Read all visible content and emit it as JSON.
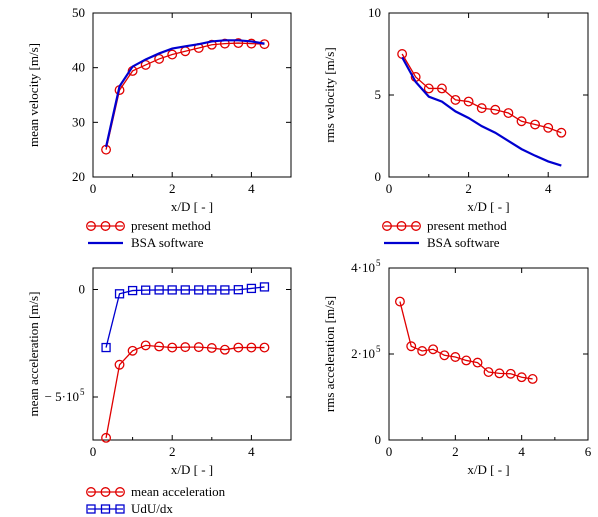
{
  "chart_data": [
    {
      "type": "line",
      "xlabel": "x/D [ - ]",
      "ylabel": "mean velocity [m/s]",
      "xlim": [
        0,
        5
      ],
      "ylim": [
        20,
        50
      ],
      "xticks": [
        0,
        2,
        4
      ],
      "xtick_labels": [
        "0",
        "2",
        "4"
      ],
      "yticks": [
        20,
        30,
        40,
        50
      ],
      "ytick_labels": [
        "20",
        "30",
        "40",
        "50"
      ],
      "legend_position": "below",
      "series": [
        {
          "name": "present method",
          "style": "line-circle",
          "color": "#e00000",
          "x": [
            0.33,
            0.67,
            1.0,
            1.33,
            1.67,
            2.0,
            2.33,
            2.67,
            3.0,
            3.33,
            3.67,
            4.0,
            4.33
          ],
          "y": [
            25.0,
            35.9,
            39.4,
            40.5,
            41.6,
            42.4,
            43.0,
            43.6,
            44.2,
            44.4,
            44.5,
            44.4,
            44.3
          ]
        },
        {
          "name": "BSA software",
          "style": "line",
          "color": "#0000d0",
          "x": [
            0.33,
            0.67,
            1.0,
            1.33,
            1.67,
            2.0,
            2.33,
            2.67,
            3.0,
            3.33,
            3.67,
            4.0,
            4.33
          ],
          "y": [
            25.5,
            36.6,
            40.2,
            41.5,
            42.6,
            43.5,
            43.9,
            44.3,
            44.8,
            45.0,
            45.0,
            44.8,
            44.4
          ]
        }
      ]
    },
    {
      "type": "line",
      "xlabel": "x/D [ - ]",
      "ylabel": "rms velocity [m/s]",
      "xlim": [
        0,
        5
      ],
      "ylim": [
        0,
        10
      ],
      "xticks": [
        0,
        2,
        4
      ],
      "xtick_labels": [
        "0",
        "2",
        "4"
      ],
      "yticks": [
        0,
        5,
        10
      ],
      "ytick_labels": [
        "0",
        "5",
        "10"
      ],
      "legend_position": "below",
      "series": [
        {
          "name": "present method",
          "style": "line-circle",
          "color": "#e00000",
          "x": [
            0.33,
            0.67,
            1.0,
            1.33,
            1.67,
            2.0,
            2.33,
            2.67,
            3.0,
            3.33,
            3.67,
            4.0,
            4.33
          ],
          "y": [
            7.5,
            6.1,
            5.4,
            5.4,
            4.7,
            4.6,
            4.2,
            4.1,
            3.9,
            3.4,
            3.2,
            3.0,
            2.7
          ]
        },
        {
          "name": "BSA software",
          "style": "line",
          "color": "#0000d0",
          "x": [
            0.33,
            0.67,
            1.0,
            1.33,
            1.67,
            2.0,
            2.33,
            2.67,
            3.0,
            3.33,
            3.67,
            4.0,
            4.33
          ],
          "y": [
            7.3,
            5.8,
            4.9,
            4.6,
            4.0,
            3.6,
            3.1,
            2.7,
            2.2,
            1.7,
            1.3,
            0.95,
            0.7
          ]
        }
      ]
    },
    {
      "type": "line",
      "xlabel": "x/D [ - ]",
      "ylabel": "mean acceleration [m/s]",
      "xlim": [
        0,
        5
      ],
      "ylim": [
        -700000,
        100000
      ],
      "xticks": [
        0,
        2,
        4
      ],
      "xtick_labels": [
        "0",
        "2",
        "4"
      ],
      "yticks": [
        0,
        -500000
      ],
      "ytick_labels": [
        "0",
        "− 5·10"
      ],
      "ytick_exponents": [
        "",
        "5"
      ],
      "legend_position": "below",
      "series": [
        {
          "name": "mean acceleration",
          "style": "line-circle",
          "color": "#e00000",
          "x": [
            0.33,
            0.67,
            1.0,
            1.33,
            1.67,
            2.0,
            2.33,
            2.67,
            3.0,
            3.33,
            3.67,
            4.0,
            4.33
          ],
          "y": [
            -690000,
            -350000,
            -285000,
            -260000,
            -265000,
            -270000,
            -268000,
            -268000,
            -272000,
            -280000,
            -270000,
            -270000,
            -270000
          ]
        },
        {
          "name": "UdU/dx",
          "style": "line-square",
          "color": "#0000d0",
          "x": [
            0.33,
            0.67,
            1.0,
            1.33,
            1.67,
            2.0,
            2.33,
            2.67,
            3.0,
            3.33,
            3.67,
            4.0,
            4.33
          ],
          "y": [
            -270000,
            -20000,
            -5000,
            -3000,
            -2000,
            -2000,
            -2000,
            -2000,
            -2000,
            -2000,
            -1000,
            5000,
            12000
          ]
        }
      ]
    },
    {
      "type": "line",
      "xlabel": "x/D [ - ]",
      "ylabel": "rms acceleration [m/s]",
      "xlim": [
        0,
        6
      ],
      "ylim": [
        0,
        400000
      ],
      "xticks": [
        0,
        2,
        4,
        6
      ],
      "xtick_labels": [
        "0",
        "2",
        "4",
        "6"
      ],
      "yticks": [
        0,
        200000,
        400000
      ],
      "ytick_labels": [
        "0",
        "2·10",
        "4·10"
      ],
      "ytick_exponents": [
        "",
        "5",
        "5"
      ],
      "series": [
        {
          "name": "",
          "style": "line-circle",
          "color": "#e00000",
          "x": [
            0.33,
            0.67,
            1.0,
            1.33,
            1.67,
            2.0,
            2.33,
            2.67,
            3.0,
            3.33,
            3.67,
            4.0,
            4.33
          ],
          "y": [
            322000,
            218000,
            207000,
            211000,
            197000,
            193000,
            185000,
            180000,
            158000,
            155000,
            154000,
            146000,
            142000
          ]
        }
      ]
    }
  ]
}
